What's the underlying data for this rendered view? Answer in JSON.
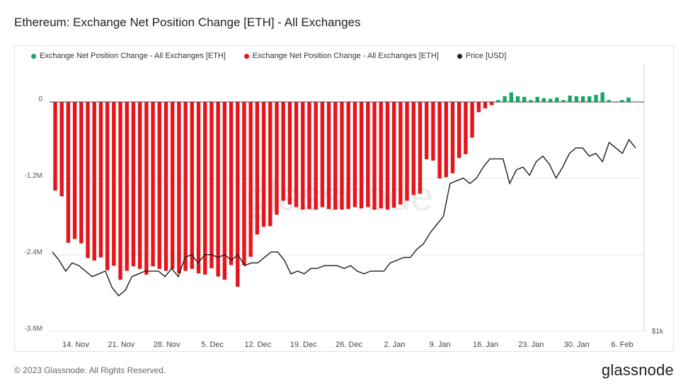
{
  "title": "Ethereum: Exchange Net Position Change [ETH] - All Exchanges",
  "footer": "© 2023 Glassnode. All Rights Reserved.",
  "brand": "glassnode",
  "watermark": "glassnode",
  "colors": {
    "positive": "#16a864",
    "negative": "#e8141c",
    "price": "#1c1c1c",
    "grid": "#e6e6e6"
  },
  "chart_data": {
    "type": "bar",
    "title": "Ethereum: Exchange Net Position Change [ETH] - All Exchanges",
    "legend": [
      {
        "name": "Exchange Net Position Change - All Exchanges [ETH]",
        "color": "#16a864"
      },
      {
        "name": "Exchange Net Position Change - All Exchanges [ETH]",
        "color": "#e8141c"
      },
      {
        "name": "Price [USD]",
        "color": "#222222"
      }
    ],
    "legend_position": "top-left",
    "x_tick_labels": [
      "14. Nov",
      "21. Nov",
      "28. Nov",
      "5. Dec",
      "12. Dec",
      "19. Dec",
      "26. Dec",
      "2. Jan",
      "9. Jan",
      "16. Jan",
      "23. Jan",
      "30. Jan",
      "6. Feb"
    ],
    "y_left": {
      "ticks": [
        0,
        -1200000,
        -2400000,
        -3600000
      ],
      "tick_labels": [
        "0",
        "-1.2M",
        "-2.4M",
        "-3.6M"
      ],
      "range": [
        -3600000,
        0
      ]
    },
    "y_right": {
      "tick_labels": [
        "$1k"
      ]
    },
    "grid": true,
    "start_date": "2022-11-10",
    "net_position_change_eth": [
      -1390000,
      -1480000,
      -2210000,
      -2150000,
      -2220000,
      -2450000,
      -2490000,
      -2440000,
      -2640000,
      -2570000,
      -2790000,
      -2650000,
      -2580000,
      -2620000,
      -2710000,
      -2580000,
      -2620000,
      -2650000,
      -2620000,
      -2690000,
      -2650000,
      -2620000,
      -2690000,
      -2710000,
      -2610000,
      -2740000,
      -2790000,
      -2560000,
      -2900000,
      -2560000,
      -2430000,
      -2080000,
      -1960000,
      -1950000,
      -1770000,
      -1550000,
      -1610000,
      -1650000,
      -1690000,
      -1680000,
      -1690000,
      -1650000,
      -1680000,
      -1690000,
      -1690000,
      -1680000,
      -1650000,
      -1670000,
      -1650000,
      -1690000,
      -1670000,
      -1690000,
      -1660000,
      -1610000,
      -1550000,
      -1460000,
      -1440000,
      -900000,
      -920000,
      -1200000,
      -1180000,
      -1120000,
      -880000,
      -820000,
      -560000,
      -160000,
      -100000,
      -50000,
      30000,
      90000,
      150000,
      90000,
      80000,
      30000,
      80000,
      60000,
      50000,
      70000,
      30000,
      100000,
      90000,
      90000,
      90000,
      110000,
      150000,
      30000,
      0,
      30000,
      70000
    ],
    "price_usd": [
      1290,
      1260,
      1220,
      1250,
      1240,
      1220,
      1200,
      1210,
      1220,
      1160,
      1130,
      1150,
      1200,
      1210,
      1220,
      1220,
      1220,
      1200,
      1230,
      1200,
      1270,
      1280,
      1250,
      1280,
      1280,
      1270,
      1280,
      1260,
      1280,
      1240,
      1250,
      1250,
      1270,
      1290,
      1290,
      1260,
      1210,
      1220,
      1210,
      1230,
      1230,
      1240,
      1240,
      1240,
      1230,
      1240,
      1220,
      1210,
      1220,
      1220,
      1220,
      1250,
      1260,
      1270,
      1270,
      1300,
      1320,
      1360,
      1390,
      1420,
      1540,
      1550,
      1560,
      1540,
      1560,
      1600,
      1630,
      1630,
      1630,
      1540,
      1590,
      1600,
      1570,
      1620,
      1640,
      1610,
      1560,
      1600,
      1650,
      1670,
      1670,
      1640,
      1650,
      1620,
      1690,
      1670,
      1650,
      1700,
      1670
    ]
  }
}
